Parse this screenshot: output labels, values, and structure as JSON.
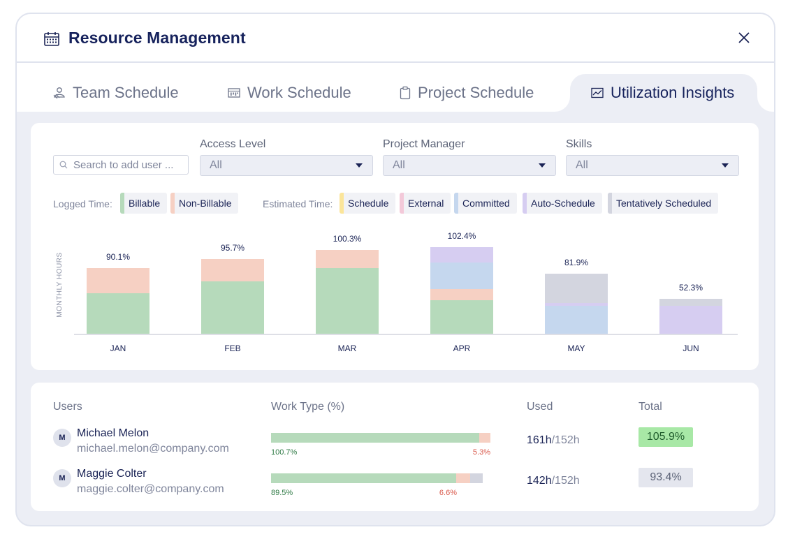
{
  "window": {
    "title": "Resource Management"
  },
  "tabs": [
    {
      "label": "Team Schedule",
      "icon": "team-icon"
    },
    {
      "label": "Work Schedule",
      "icon": "calendar-grid-icon"
    },
    {
      "label": "Project Schedule",
      "icon": "clipboard-icon"
    },
    {
      "label": "Utilization Insights",
      "icon": "trend-chart-icon",
      "active": true
    }
  ],
  "filters": {
    "search_placeholder": "Search to add user ...",
    "access_level": {
      "label": "Access Level",
      "value": "All"
    },
    "project_manager": {
      "label": "Project Manager",
      "value": "All"
    },
    "skills": {
      "label": "Skills",
      "value": "All"
    }
  },
  "legend": {
    "logged_label": "Logged Time:",
    "estimated_label": "Estimated Time:",
    "billable": "Billable",
    "non_billable": "Non-Billable",
    "schedule": "Schedule",
    "external": "External",
    "committed": "Committed",
    "auto_schedule": "Auto-Schedule",
    "tentative": "Tentatively Scheduled"
  },
  "colors": {
    "billable": "#b6dabb",
    "non_billable": "#f6d0c3",
    "schedule": "#fbe59a",
    "external": "#f3c9d9",
    "committed": "#c5d7ee",
    "auto_schedule": "#d6cdf1",
    "tentative": "#d3d5df",
    "total_over": "#a8e8a6",
    "total_normal": "#e4e6ee",
    "negative_text": "#d9584a",
    "positive_text": "#2f7a45"
  },
  "chart_data": {
    "type": "bar",
    "stacked": true,
    "ylabel": "MONTHLY HOURS",
    "categories": [
      "JAN",
      "FEB",
      "MAR",
      "APR",
      "MAY",
      "JUN"
    ],
    "percent_labels": [
      "90.1%",
      "95.7%",
      "100.3%",
      "102.4%",
      "81.9%",
      "52.3%"
    ],
    "series": [
      {
        "name": "Billable",
        "color": "#b6dabb",
        "values": [
          58,
          75,
          94,
          48,
          0,
          0
        ]
      },
      {
        "name": "Non-Billable",
        "color": "#f6d0c3",
        "values": [
          36,
          32,
          26,
          16,
          0,
          0
        ]
      },
      {
        "name": "Committed",
        "color": "#c5d7ee",
        "values": [
          0,
          0,
          0,
          38,
          40,
          0
        ]
      },
      {
        "name": "Auto-Schedule",
        "color": "#d6cdf1",
        "values": [
          0,
          0,
          0,
          22,
          4,
          40
        ]
      },
      {
        "name": "Tentatively Scheduled",
        "color": "#d3d5df",
        "values": [
          0,
          0,
          0,
          0,
          42,
          10
        ]
      }
    ],
    "ylim": [
      0,
      130
    ]
  },
  "table": {
    "headers": {
      "users": "Users",
      "work_type": "Work Type (%)",
      "used": "Used",
      "total": "Total"
    },
    "rows": [
      {
        "initial": "M",
        "name": "Michael Melon",
        "email": "michael.melon@company.com",
        "billable_pct": 100.7,
        "billable_label": "100.7%",
        "non_billable_pct": 5.3,
        "non_billable_label": "5.3%",
        "tentative_pct": 0,
        "used": "161h",
        "capacity": "/152h",
        "total": "105.9%",
        "over": true
      },
      {
        "initial": "M",
        "name": "Maggie Colter",
        "email": "maggie.colter@company.com",
        "billable_pct": 89.5,
        "billable_label": "89.5%",
        "non_billable_pct": 6.6,
        "non_billable_label": "6.6%",
        "tentative_pct": 6.2,
        "used": "142h",
        "capacity": "/152h",
        "total": "93.4%",
        "over": false
      }
    ]
  }
}
